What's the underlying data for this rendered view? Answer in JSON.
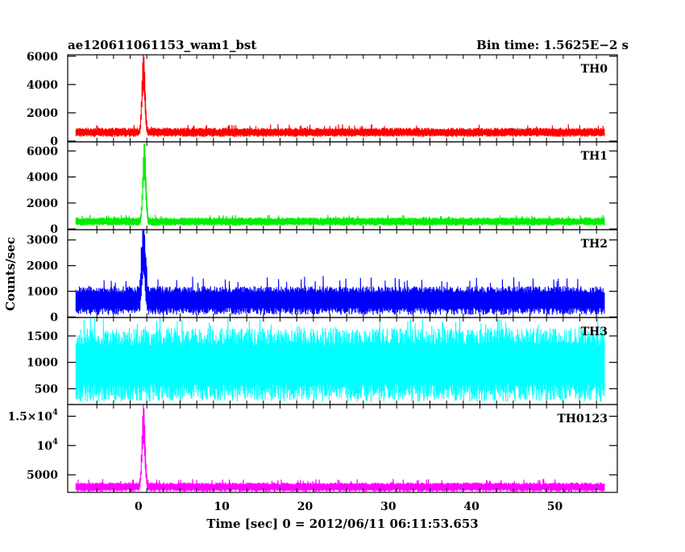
{
  "header": {
    "left_title": "ae120611061153_wam1_bst",
    "right_title": "Bin time: 1.5625E−2 s"
  },
  "chart_data": {
    "type": "line",
    "xlabel": "Time [sec] 0 = 2012/06/11 06:11:53.653",
    "ylabel": "Counts/sec",
    "xlim": [
      -8.5,
      57.5
    ],
    "x_ticks": [
      {
        "value": 0,
        "label": "0"
      },
      {
        "value": 10,
        "label": "10"
      },
      {
        "value": 20,
        "label": "20"
      },
      {
        "value": 30,
        "label": "30"
      },
      {
        "value": 40,
        "label": "40"
      },
      {
        "value": 50,
        "label": "50"
      }
    ],
    "x_range": [
      -7.5,
      56
    ],
    "panels": [
      {
        "name": "TH0",
        "color": "#ff0000",
        "ylim": [
          -50,
          6100
        ],
        "y_ticks": [
          {
            "value": 0,
            "label": "0"
          },
          {
            "value": 2000,
            "label": "2000"
          },
          {
            "value": 4000,
            "label": "4000"
          },
          {
            "value": 6000,
            "label": "6000"
          }
        ],
        "baseline": 620,
        "noise_low": 300,
        "noise_high": 1200,
        "noise_dense": 950,
        "peak": {
          "t": 0.6,
          "height": 6100,
          "width": 0.18
        }
      },
      {
        "name": "TH1",
        "color": "#00ee00",
        "ylim": [
          -50,
          6700
        ],
        "y_ticks": [
          {
            "value": 0,
            "label": "0"
          },
          {
            "value": 2000,
            "label": "2000"
          },
          {
            "value": 4000,
            "label": "4000"
          },
          {
            "value": 6000,
            "label": "6000"
          }
        ],
        "baseline": 580,
        "noise_low": 250,
        "noise_high": 1100,
        "noise_dense": 900,
        "peak": {
          "t": 0.7,
          "height": 6500,
          "width": 0.18
        }
      },
      {
        "name": "TH2",
        "color": "#0000ff",
        "ylim": [
          -20,
          3400
        ],
        "y_ticks": [
          {
            "value": 0,
            "label": "0"
          },
          {
            "value": 1000,
            "label": "1000"
          },
          {
            "value": 2000,
            "label": "2000"
          },
          {
            "value": 3000,
            "label": "3000"
          }
        ],
        "baseline": 700,
        "noise_low": 80,
        "noise_high": 1600,
        "noise_dense": 1200,
        "peak": {
          "t": 0.6,
          "height": 3300,
          "width": 0.2
        }
      },
      {
        "name": "TH3",
        "color": "#00ffff",
        "ylim": [
          200,
          1850
        ],
        "y_ticks": [
          {
            "value": 500,
            "label": "500"
          },
          {
            "value": 1000,
            "label": "1000"
          },
          {
            "value": 1500,
            "label": "1500"
          }
        ],
        "baseline": 1000,
        "noise_low": 250,
        "noise_high": 1850,
        "noise_dense": 1650,
        "peak": null
      },
      {
        "name": "TH0123",
        "color": "#ff00ff",
        "ylim": [
          2000,
          17000
        ],
        "y_ticks": [
          {
            "value": 5000,
            "label": "5000"
          },
          {
            "value": 10000,
            "label": "10",
            "sup": "4"
          },
          {
            "value": 15000,
            "label": "1.5×10",
            "sup": "4"
          }
        ],
        "baseline": 3000,
        "noise_low": 2100,
        "noise_high": 4300,
        "noise_dense": 3700,
        "peak": {
          "t": 0.6,
          "height": 16500,
          "width": 0.18
        }
      }
    ]
  }
}
